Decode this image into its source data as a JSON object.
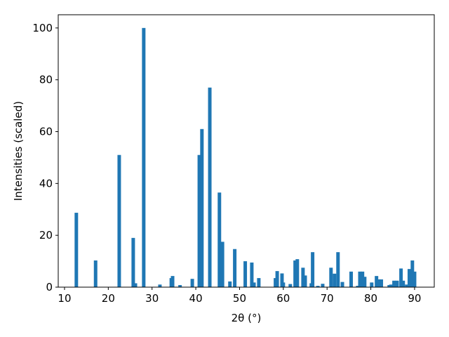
{
  "chart_data": {
    "type": "bar",
    "xlabel": "2θ (°)",
    "ylabel": "Intensities (scaled)",
    "color": "#1f77b4",
    "x": [
      12.7,
      17.1,
      22.5,
      25.7,
      26.2,
      28.1,
      31.8,
      34.4,
      34.7,
      36.4,
      39.2,
      40.8,
      41.4,
      43.2,
      45.4,
      46.1,
      47.8,
      48.9,
      51.3,
      52.8,
      53.3,
      54.4,
      58.2,
      58.6,
      59.7,
      60.0,
      61.6,
      62.7,
      63.2,
      64.5,
      65.0,
      66.4,
      66.7,
      67.9,
      69.0,
      70.9,
      71.7,
      72.5,
      73.5,
      75.5,
      77.0,
      77.5,
      78.1,
      78.6,
      80.2,
      81.3,
      81.8,
      82.4,
      84.2,
      84.6,
      85.3,
      86.0,
      86.9,
      87.4,
      88.2,
      88.8,
      89.5,
      90.0
    ],
    "values": [
      28.7,
      10.3,
      51,
      19,
      1.5,
      100,
      1,
      3.5,
      4.3,
      0.8,
      3.2,
      51,
      61,
      77,
      36.5,
      17.5,
      2.2,
      14.7,
      10,
      9.5,
      1.8,
      3.5,
      3.5,
      6.2,
      5.3,
      1.8,
      1.2,
      10.3,
      10.8,
      7.5,
      4.5,
      1.5,
      13.5,
      0.5,
      1.3,
      7.5,
      5.2,
      13.5,
      2,
      6,
      0.5,
      6,
      6,
      4,
      1.8,
      4.3,
      3,
      3,
      0.8,
      1,
      2.5,
      2.5,
      7.2,
      2.5,
      1,
      7,
      10.3,
      6
    ],
    "xlim": [
      8.56,
      94.5
    ],
    "ylim": [
      0,
      105.1
    ],
    "xticks": [
      10,
      20,
      30,
      40,
      50,
      60,
      70,
      80,
      90
    ],
    "yticks": [
      0,
      20,
      40,
      60,
      80,
      100
    ]
  }
}
